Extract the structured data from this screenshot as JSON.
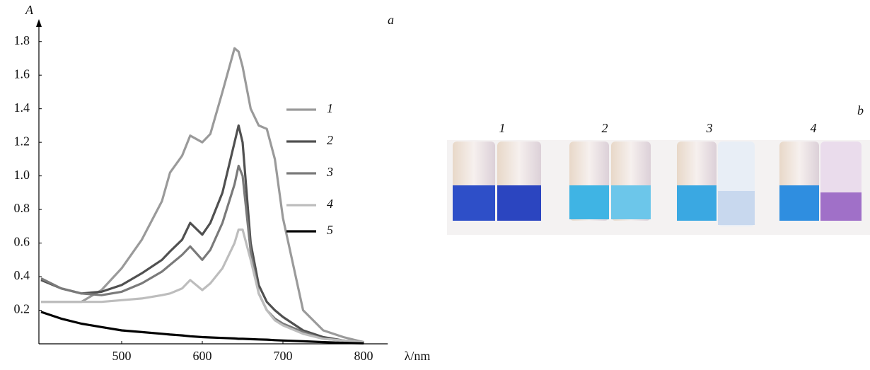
{
  "chart_data": {
    "type": "line",
    "panel_label": "a",
    "y_label": "A",
    "x_label": "λ/nm",
    "x": [
      400,
      425,
      450,
      475,
      500,
      525,
      550,
      560,
      575,
      585,
      600,
      610,
      625,
      640,
      645,
      650,
      660,
      670,
      680,
      690,
      700,
      725,
      750,
      775,
      800
    ],
    "xlim": [
      400,
      830
    ],
    "xticks": [
      500,
      600,
      700,
      800
    ],
    "ylim": [
      0,
      1.9
    ],
    "yticks": [
      0.2,
      0.4,
      0.6,
      0.8,
      {
        "value": 1,
        "label": "1.0"
      },
      1.2,
      1.4,
      1.6,
      1.8
    ],
    "series": [
      {
        "name": "1",
        "color": "#9a9a9a",
        "values": [
          0.25,
          0.25,
          0.25,
          0.32,
          0.45,
          0.62,
          0.85,
          1.02,
          1.12,
          1.24,
          1.2,
          1.25,
          1.5,
          1.76,
          1.74,
          1.65,
          1.4,
          1.3,
          1.28,
          1.1,
          0.75,
          0.2,
          0.08,
          0.04,
          0.01
        ]
      },
      {
        "name": "2",
        "color": "#505050",
        "values": [
          0.38,
          0.33,
          0.3,
          0.31,
          0.35,
          0.42,
          0.5,
          0.55,
          0.62,
          0.72,
          0.65,
          0.72,
          0.9,
          1.2,
          1.3,
          1.2,
          0.6,
          0.35,
          0.25,
          0.2,
          0.16,
          0.08,
          0.04,
          0.02,
          0.01
        ]
      },
      {
        "name": "3",
        "color": "#7a7a7a",
        "values": [
          0.39,
          0.33,
          0.3,
          0.29,
          0.31,
          0.36,
          0.43,
          0.47,
          0.53,
          0.58,
          0.5,
          0.56,
          0.72,
          0.95,
          1.06,
          1.0,
          0.55,
          0.3,
          0.2,
          0.15,
          0.12,
          0.07,
          0.03,
          0.02,
          0.01
        ]
      },
      {
        "name": "4",
        "color": "#bdbdbd",
        "values": [
          0.25,
          0.25,
          0.25,
          0.25,
          0.26,
          0.27,
          0.29,
          0.3,
          0.33,
          0.38,
          0.32,
          0.36,
          0.45,
          0.6,
          0.68,
          0.68,
          0.5,
          0.3,
          0.2,
          0.14,
          0.11,
          0.06,
          0.03,
          0.02,
          0.01
        ]
      },
      {
        "name": "5",
        "color": "#000000",
        "values": [
          0.19,
          0.15,
          0.12,
          0.1,
          0.08,
          0.07,
          0.06,
          0.055,
          0.05,
          0.045,
          0.04,
          0.038,
          0.035,
          0.032,
          0.03,
          0.03,
          0.028,
          0.026,
          0.025,
          0.022,
          0.02,
          0.015,
          0.01,
          0.006,
          0.003
        ]
      }
    ]
  },
  "photo": {
    "panel_label": "b",
    "labels": [
      "1",
      "2",
      "3",
      "4"
    ]
  }
}
